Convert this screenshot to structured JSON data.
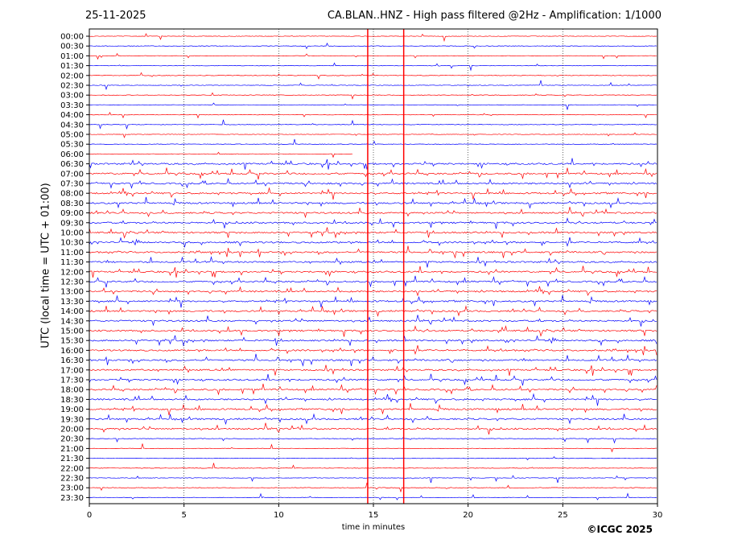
{
  "header": {
    "date": "25-11-2025",
    "title": "CA.BLAN..HNZ - High pass filtered @2Hz - Amplification: 1/1000"
  },
  "footer": {
    "copyright": "©ICGC 2025"
  },
  "chart_data": {
    "type": "line",
    "title": "CA.BLAN..HNZ - High pass filtered @2Hz - Amplification: 1/1000",
    "xlabel": "time in minutes",
    "ylabel": "UTC (local time = UTC + 01:00)",
    "xlim": [
      0,
      30
    ],
    "x_ticks": [
      0,
      5,
      10,
      15,
      20,
      25,
      30
    ],
    "rows": [
      "00:00",
      "00:30",
      "01:00",
      "01:30",
      "02:00",
      "02:30",
      "03:00",
      "03:30",
      "04:00",
      "04:30",
      "05:00",
      "05:30",
      "06:00",
      "06:30",
      "07:00",
      "07:30",
      "08:00",
      "08:30",
      "09:00",
      "09:30",
      "10:00",
      "10:30",
      "11:00",
      "11:30",
      "12:00",
      "12:30",
      "13:00",
      "13:30",
      "14:00",
      "14:30",
      "15:00",
      "15:30",
      "16:00",
      "16:30",
      "17:00",
      "17:30",
      "18:00",
      "18:30",
      "19:00",
      "19:30",
      "20:00",
      "20:30",
      "21:00",
      "21:30",
      "22:00",
      "22:30",
      "23:00",
      "23:30"
    ],
    "trace_colors": [
      "#ff0000",
      "#0000ff"
    ],
    "vertical_markers_minutes": [
      14.7,
      16.6
    ],
    "marker_color": "#ff0000",
    "gap_06_00_from_minute": 13.9,
    "grid": "dotted vertical at 5-minute ticks"
  }
}
